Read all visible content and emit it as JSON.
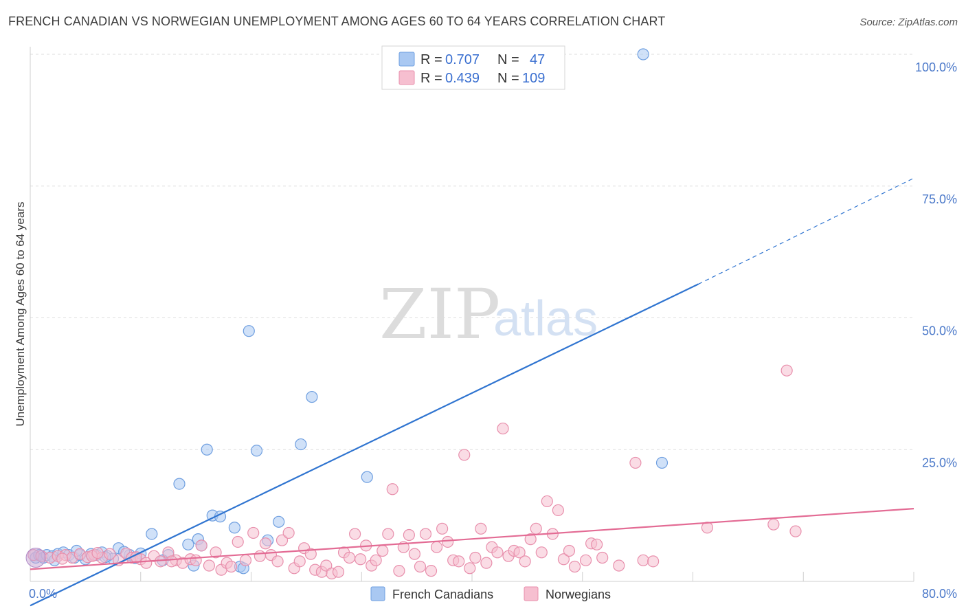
{
  "title": "FRENCH CANADIAN VS NORWEGIAN UNEMPLOYMENT AMONG AGES 60 TO 64 YEARS CORRELATION CHART",
  "source": "Source: ZipAtlas.com",
  "watermark": {
    "zip": "ZIP",
    "atlas": "atlas"
  },
  "legend": {
    "rows": [
      {
        "r_label": "R =",
        "r_value": "0.707",
        "n_label": "N =",
        "n_value": "47",
        "color": "#a9c8f2",
        "stroke": "#6f9fe0"
      },
      {
        "r_label": "R =",
        "r_value": "0.439",
        "n_label": "N =",
        "n_value": "109",
        "color": "#f6bfd0",
        "stroke": "#e88fac"
      }
    ]
  },
  "bottom_legend": [
    {
      "label": "French Canadians",
      "color": "#a9c8f2",
      "stroke": "#6f9fe0"
    },
    {
      "label": "Norwegians",
      "color": "#f6bfd0",
      "stroke": "#e88fac"
    }
  ],
  "chart_data": {
    "type": "scatter",
    "title": "FRENCH CANADIAN VS NORWEGIAN UNEMPLOYMENT AMONG AGES 60 TO 64 YEARS CORRELATION CHART",
    "xlabel": "",
    "ylabel": "Unemployment Among Ages 60 to 64 years",
    "xlim": [
      0,
      80
    ],
    "ylim": [
      0,
      100
    ],
    "x_tick_labels": [
      {
        "value": 0,
        "label": "0.0%"
      },
      {
        "value": 80,
        "label": "80.0%"
      }
    ],
    "y_tick_labels": [
      {
        "value": 100,
        "label": "100.0%"
      },
      {
        "value": 75,
        "label": "75.0%"
      },
      {
        "value": 50,
        "label": "50.0%"
      },
      {
        "value": 25,
        "label": "25.0%"
      }
    ],
    "series": [
      {
        "name": "French Canadians",
        "color": "#a9c8f2",
        "stroke": "#6f9fe0",
        "line_color": "#2f74d0",
        "trend": {
          "x0": 0,
          "y0": -4.6,
          "x1": 60.5,
          "y1": 56.4,
          "dash_to_x": 80,
          "dash_to_y": 76.5
        },
        "points": [
          [
            0.5,
            4.5
          ],
          [
            0.8,
            5
          ],
          [
            1.2,
            4.5
          ],
          [
            1.5,
            5
          ],
          [
            2,
            4.8
          ],
          [
            2.5,
            5.2
          ],
          [
            3,
            5.5
          ],
          [
            3.5,
            5.0
          ],
          [
            4,
            4.5
          ],
          [
            4.5,
            5
          ],
          [
            5,
            4.2
          ],
          [
            5.5,
            5.2
          ],
          [
            6,
            5.0
          ],
          [
            6.5,
            5.5
          ],
          [
            7,
            4.8
          ],
          [
            7.5,
            4.3
          ],
          [
            8,
            6.3
          ],
          [
            9,
            5.0
          ],
          [
            10,
            5.3
          ],
          [
            11,
            9.0
          ],
          [
            12.5,
            5.0
          ],
          [
            13.5,
            18.5
          ],
          [
            14.3,
            7.0
          ],
          [
            14.8,
            3.0
          ],
          [
            15.2,
            8.0
          ],
          [
            15.5,
            6.8
          ],
          [
            16,
            25
          ],
          [
            16.5,
            12.5
          ],
          [
            17.2,
            12.3
          ],
          [
            18.5,
            10.2
          ],
          [
            19,
            2.8
          ],
          [
            19.3,
            2.5
          ],
          [
            19.8,
            47.5
          ],
          [
            20.5,
            24.8
          ],
          [
            21.5,
            7.8
          ],
          [
            22.5,
            11.3
          ],
          [
            24.5,
            26
          ],
          [
            25.5,
            35
          ],
          [
            30.5,
            19.8
          ],
          [
            55.5,
            100
          ],
          [
            57.2,
            22.5
          ],
          [
            2.2,
            4.0
          ],
          [
            6.8,
            4.6
          ],
          [
            9.5,
            4.4
          ],
          [
            12.0,
            4.0
          ],
          [
            4.2,
            5.8
          ],
          [
            8.5,
            5.6
          ]
        ]
      },
      {
        "name": "Norwegians",
        "color": "#f6bfd0",
        "stroke": "#e88fac",
        "line_color": "#e36b94",
        "trend": {
          "x0": 0,
          "y0": 2.3,
          "x1": 80,
          "y1": 13.8
        },
        "points": [
          [
            0.3,
            5.0
          ],
          [
            1,
            4.8
          ],
          [
            1.8,
            4.5
          ],
          [
            2.5,
            4.8
          ],
          [
            3.2,
            5.0
          ],
          [
            3.8,
            4.5
          ],
          [
            4.5,
            5.2
          ],
          [
            5.2,
            4.6
          ],
          [
            5.8,
            5.0
          ],
          [
            6.5,
            4.5
          ],
          [
            7.2,
            5.2
          ],
          [
            8,
            4.0
          ],
          [
            8.7,
            5.3
          ],
          [
            9.2,
            4.5
          ],
          [
            10,
            4.2
          ],
          [
            10.5,
            3.5
          ],
          [
            11.2,
            4.8
          ],
          [
            11.8,
            3.8
          ],
          [
            12.5,
            5.5
          ],
          [
            13.2,
            4.0
          ],
          [
            13.8,
            3.5
          ],
          [
            14.5,
            4.2
          ],
          [
            15.0,
            4.0
          ],
          [
            15.5,
            6.8
          ],
          [
            16.2,
            3.0
          ],
          [
            16.8,
            5.5
          ],
          [
            17.3,
            2.2
          ],
          [
            17.8,
            3.5
          ],
          [
            18.2,
            2.8
          ],
          [
            18.8,
            7.5
          ],
          [
            19.5,
            4.0
          ],
          [
            20.2,
            9.2
          ],
          [
            20.8,
            4.8
          ],
          [
            21.3,
            7.2
          ],
          [
            21.8,
            5.0
          ],
          [
            22.4,
            3.8
          ],
          [
            22.8,
            7.8
          ],
          [
            23.4,
            9.2
          ],
          [
            23.9,
            2.5
          ],
          [
            24.4,
            3.8
          ],
          [
            24.8,
            6.3
          ],
          [
            25.4,
            5.2
          ],
          [
            25.8,
            2.2
          ],
          [
            26.4,
            1.8
          ],
          [
            26.8,
            3.0
          ],
          [
            27.3,
            1.5
          ],
          [
            27.9,
            1.8
          ],
          [
            28.4,
            5.5
          ],
          [
            28.9,
            4.5
          ],
          [
            29.4,
            9.0
          ],
          [
            29.9,
            4.2
          ],
          [
            30.4,
            6.8
          ],
          [
            30.9,
            3.0
          ],
          [
            31.3,
            4.0
          ],
          [
            31.9,
            5.8
          ],
          [
            32.4,
            9.0
          ],
          [
            32.8,
            17.5
          ],
          [
            33.4,
            2.0
          ],
          [
            33.8,
            6.5
          ],
          [
            34.3,
            8.8
          ],
          [
            34.8,
            5.2
          ],
          [
            35.3,
            2.8
          ],
          [
            35.8,
            9.0
          ],
          [
            36.3,
            2.0
          ],
          [
            36.8,
            6.5
          ],
          [
            37.3,
            10.0
          ],
          [
            37.8,
            7.5
          ],
          [
            38.3,
            4.0
          ],
          [
            38.8,
            3.8
          ],
          [
            39.3,
            24.0
          ],
          [
            39.8,
            2.5
          ],
          [
            40.3,
            4.5
          ],
          [
            40.8,
            10.0
          ],
          [
            41.3,
            3.5
          ],
          [
            41.8,
            6.5
          ],
          [
            42.3,
            5.5
          ],
          [
            42.8,
            29
          ],
          [
            43.3,
            4.8
          ],
          [
            43.8,
            5.8
          ],
          [
            44.3,
            5.5
          ],
          [
            44.8,
            3.8
          ],
          [
            45.3,
            8.0
          ],
          [
            45.8,
            10.0
          ],
          [
            46.3,
            5.5
          ],
          [
            46.8,
            15.2
          ],
          [
            47.3,
            9.0
          ],
          [
            47.8,
            13.5
          ],
          [
            48.3,
            4.2
          ],
          [
            48.8,
            5.8
          ],
          [
            49.3,
            2.8
          ],
          [
            50.3,
            4.0
          ],
          [
            50.8,
            7.2
          ],
          [
            51.3,
            7.0
          ],
          [
            51.8,
            4.5
          ],
          [
            53.3,
            3.0
          ],
          [
            54.8,
            22.5
          ],
          [
            55.5,
            4.0
          ],
          [
            56.4,
            3.8
          ],
          [
            61.3,
            10.2
          ],
          [
            67.3,
            10.8
          ],
          [
            68.5,
            40
          ],
          [
            69.3,
            9.5
          ],
          [
            12.8,
            3.8
          ],
          [
            9.6,
            4.6
          ],
          [
            5.6,
            4.8
          ],
          [
            2.9,
            4.3
          ],
          [
            6.1,
            5.4
          ]
        ]
      }
    ]
  }
}
